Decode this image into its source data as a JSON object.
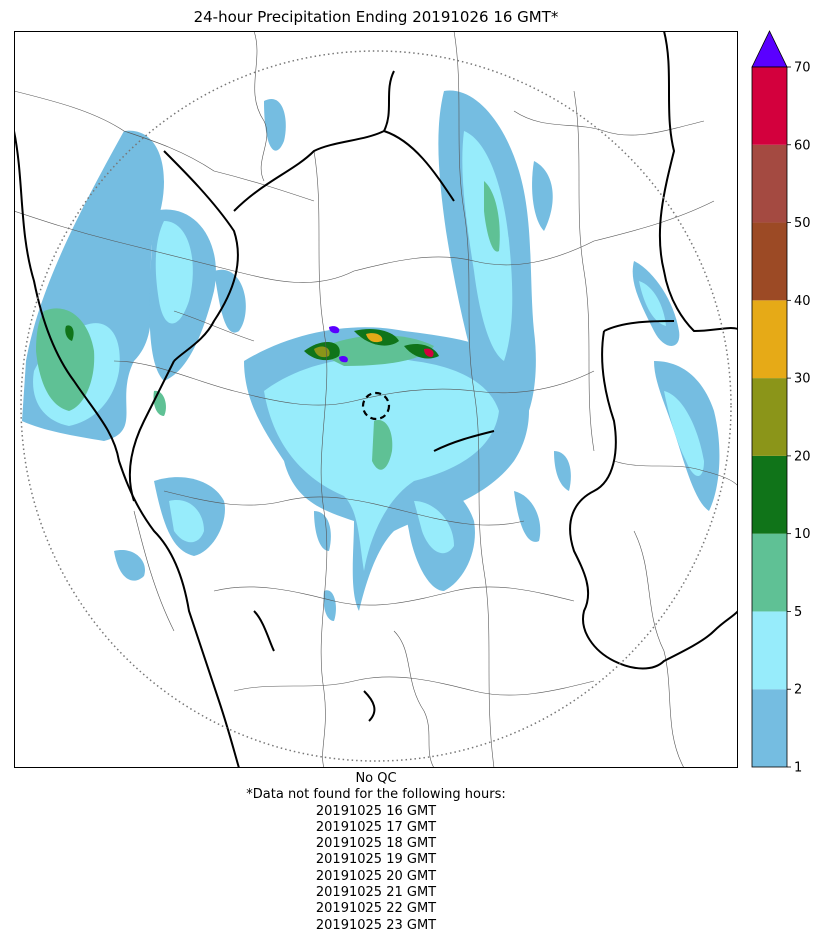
{
  "title": "24-hour Precipitation Ending 20191026 16 GMT*",
  "footer": {
    "qc_label": "No QC",
    "missing_note": "*Data not found for the following hours:",
    "missing_hours": [
      "20191025 16 GMT",
      "20191025 17 GMT",
      "20191025 18 GMT",
      "20191025 19 GMT",
      "20191025 20 GMT",
      "20191025 21 GMT",
      "20191025 22 GMT",
      "20191025 23 GMT"
    ]
  },
  "colorbar": {
    "tick_labels": [
      "1",
      "2",
      "5",
      "10",
      "20",
      "30",
      "40",
      "50",
      "60",
      "70"
    ],
    "bins": [
      {
        "from": 1,
        "to": 2,
        "color": "#75bde1"
      },
      {
        "from": 2,
        "to": 5,
        "color": "#97ecfb"
      },
      {
        "from": 5,
        "to": 10,
        "color": "#5fc195"
      },
      {
        "from": 10,
        "to": 20,
        "color": "#107419"
      },
      {
        "from": 20,
        "to": 30,
        "color": "#8b9519"
      },
      {
        "from": 30,
        "to": 40,
        "color": "#e6aa17"
      },
      {
        "from": 40,
        "to": 50,
        "color": "#9c4a25"
      },
      {
        "from": 50,
        "to": 60,
        "color": "#a44a41"
      },
      {
        "from": 60,
        "to": 70,
        "color": "#d3003d"
      }
    ],
    "extend_color": "#5a00ff",
    "extend": "max"
  },
  "map_data": {
    "radar_range_ring": "dotted grey circle",
    "radar_site_marker": "dashed black circle",
    "boundaries": "thick black national borders, thin grey internal borders"
  }
}
